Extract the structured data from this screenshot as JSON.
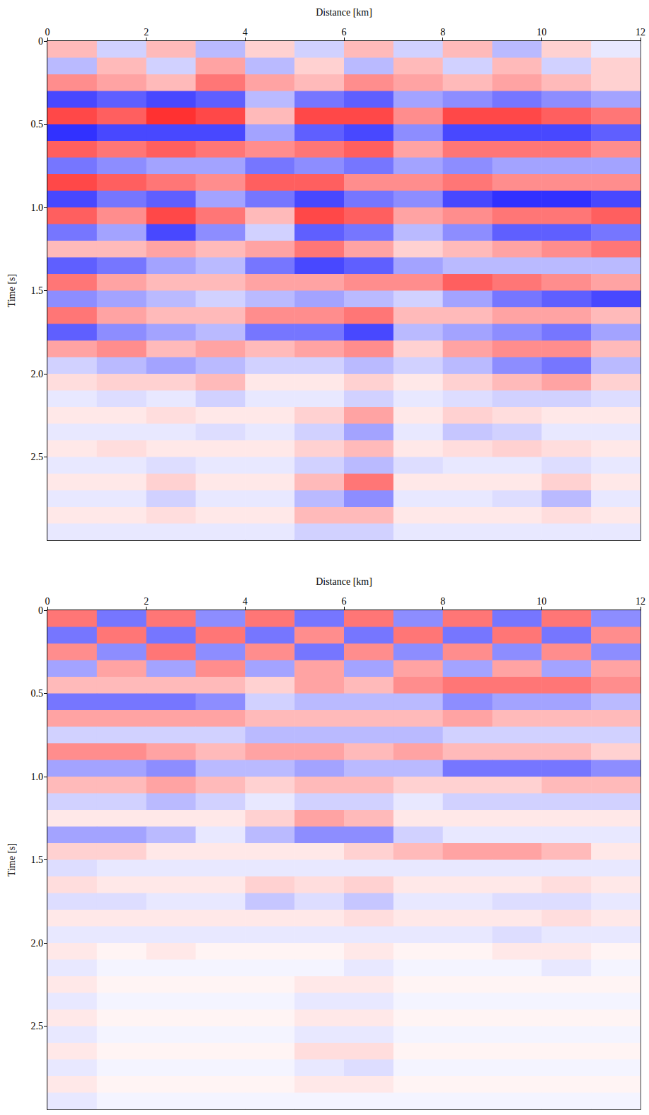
{
  "chart_data": [
    {
      "type": "heatmap",
      "xlabel": "Distance [km]",
      "ylabel": "Time [s]",
      "x": [
        0.5,
        1.5,
        2.5,
        3.5,
        4.5,
        5.5,
        6.5,
        7.5,
        8.5,
        9.5,
        10.5,
        11.5
      ],
      "y": [
        0.05,
        0.15,
        0.25,
        0.35,
        0.45,
        0.55,
        0.65,
        0.75,
        0.85,
        0.95,
        1.05,
        1.15,
        1.25,
        1.35,
        1.45,
        1.55,
        1.65,
        1.75,
        1.85,
        1.95,
        2.05,
        2.15,
        2.25,
        2.35,
        2.45,
        2.55,
        2.65,
        2.75,
        2.85,
        2.95
      ],
      "values": [
        [
          0.3,
          -0.2,
          0.3,
          -0.3,
          0.2,
          -0.2,
          0.3,
          -0.2,
          0.3,
          -0.3,
          0.2,
          -0.1
        ],
        [
          -0.3,
          0.3,
          -0.2,
          0.4,
          -0.3,
          0.2,
          -0.3,
          0.3,
          -0.2,
          0.3,
          -0.2,
          0.2
        ],
        [
          0.5,
          0.4,
          0.3,
          0.6,
          0.4,
          0.3,
          0.5,
          0.4,
          0.3,
          0.4,
          0.3,
          0.2
        ],
        [
          -0.8,
          -0.7,
          -0.8,
          -0.7,
          -0.3,
          -0.6,
          -0.7,
          -0.4,
          -0.5,
          -0.6,
          -0.5,
          -0.4
        ],
        [
          0.8,
          0.7,
          0.9,
          0.8,
          0.3,
          0.8,
          0.8,
          0.5,
          0.8,
          0.8,
          0.7,
          0.6
        ],
        [
          -0.9,
          -0.8,
          -0.8,
          -0.8,
          -0.4,
          -0.7,
          -0.8,
          -0.5,
          -0.8,
          -0.8,
          -0.8,
          -0.7
        ],
        [
          0.7,
          0.6,
          0.7,
          0.6,
          0.5,
          0.6,
          0.7,
          0.4,
          0.6,
          0.6,
          0.6,
          0.5
        ],
        [
          -0.6,
          -0.5,
          -0.4,
          -0.4,
          -0.6,
          -0.5,
          -0.6,
          -0.4,
          -0.5,
          -0.4,
          -0.4,
          -0.4
        ],
        [
          0.8,
          0.7,
          0.6,
          0.5,
          0.7,
          0.7,
          0.5,
          0.5,
          0.6,
          0.5,
          0.5,
          0.5
        ],
        [
          -0.8,
          -0.6,
          -0.7,
          -0.4,
          -0.6,
          -0.8,
          -0.6,
          -0.5,
          -0.8,
          -0.9,
          -0.9,
          -0.8
        ],
        [
          0.7,
          0.5,
          0.8,
          0.6,
          0.3,
          0.8,
          0.7,
          0.4,
          0.5,
          0.6,
          0.6,
          0.7
        ],
        [
          -0.6,
          -0.4,
          -0.8,
          -0.5,
          -0.2,
          -0.7,
          -0.6,
          -0.3,
          -0.5,
          -0.7,
          -0.7,
          -0.6
        ],
        [
          0.3,
          0.3,
          0.4,
          0.3,
          0.4,
          0.6,
          0.4,
          0.2,
          0.3,
          0.4,
          0.5,
          0.6
        ],
        [
          -0.7,
          -0.6,
          -0.4,
          -0.3,
          -0.6,
          -0.8,
          -0.7,
          -0.4,
          -0.3,
          -0.3,
          -0.3,
          -0.3
        ],
        [
          0.6,
          0.4,
          0.3,
          0.3,
          0.4,
          0.4,
          0.5,
          0.5,
          0.7,
          0.6,
          0.5,
          0.4
        ],
        [
          -0.5,
          -0.4,
          -0.3,
          -0.2,
          -0.3,
          -0.4,
          -0.3,
          -0.2,
          -0.4,
          -0.6,
          -0.7,
          -0.8
        ],
        [
          0.6,
          0.4,
          0.3,
          0.3,
          0.5,
          0.5,
          0.6,
          0.3,
          0.3,
          0.4,
          0.4,
          0.3
        ],
        [
          -0.7,
          -0.5,
          -0.4,
          -0.3,
          -0.6,
          -0.6,
          -0.8,
          -0.3,
          -0.4,
          -0.5,
          -0.6,
          -0.4
        ],
        [
          0.4,
          0.5,
          0.3,
          0.4,
          0.3,
          0.4,
          0.5,
          0.2,
          0.4,
          0.5,
          0.5,
          0.3
        ],
        [
          -0.2,
          -0.3,
          -0.4,
          -0.3,
          -0.2,
          -0.2,
          -0.3,
          -0.2,
          -0.3,
          -0.5,
          -0.6,
          -0.3
        ],
        [
          0.15,
          0.2,
          0.2,
          0.3,
          0.1,
          0.1,
          0.2,
          0.1,
          0.2,
          0.3,
          0.4,
          0.2
        ],
        [
          -0.1,
          -0.15,
          -0.1,
          -0.2,
          -0.1,
          -0.1,
          -0.2,
          -0.1,
          -0.15,
          -0.2,
          -0.2,
          -0.15
        ],
        [
          0.1,
          0.1,
          0.15,
          0.1,
          0.1,
          0.2,
          0.4,
          0.1,
          0.2,
          0.15,
          0.1,
          0.1
        ],
        [
          -0.1,
          -0.1,
          -0.1,
          -0.15,
          -0.1,
          -0.2,
          -0.4,
          -0.1,
          -0.25,
          -0.2,
          -0.1,
          -0.1
        ],
        [
          0.1,
          0.15,
          0.1,
          0.1,
          0.1,
          0.2,
          0.3,
          0.1,
          0.15,
          0.2,
          0.15,
          0.1
        ],
        [
          -0.1,
          -0.1,
          -0.15,
          -0.1,
          -0.1,
          -0.2,
          -0.3,
          -0.15,
          -0.1,
          -0.1,
          -0.15,
          -0.1
        ],
        [
          0.1,
          0.1,
          0.2,
          0.1,
          0.1,
          0.3,
          0.6,
          0.1,
          0.1,
          0.1,
          0.2,
          0.1
        ],
        [
          -0.1,
          -0.1,
          -0.2,
          -0.1,
          -0.1,
          -0.3,
          -0.5,
          -0.1,
          -0.1,
          -0.15,
          -0.3,
          -0.1
        ],
        [
          0.1,
          0.1,
          0.15,
          0.1,
          0.1,
          0.3,
          0.3,
          0.1,
          0.1,
          0.1,
          0.15,
          0.1
        ],
        [
          -0.1,
          -0.1,
          -0.1,
          -0.1,
          -0.1,
          -0.2,
          -0.2,
          -0.1,
          -0.1,
          -0.1,
          -0.1,
          -0.1
        ]
      ],
      "xlim": [
        0,
        12
      ],
      "xticks": [
        0,
        2,
        4,
        6,
        8,
        10,
        12
      ],
      "ylim": [
        0,
        3
      ],
      "yticks": [
        0,
        0.5,
        {
          "value": 1,
          "label": "1.0"
        },
        1.5,
        {
          "value": 2,
          "label": "2.0"
        },
        2.5
      ],
      "color_range": [
        -1,
        1
      ],
      "colors": [
        "#1a1aff",
        "#ffffff",
        "#ff1a1a"
      ]
    },
    {
      "type": "heatmap",
      "xlabel": "Distance [km]",
      "ylabel": "Time [s]",
      "x": [
        0.5,
        1.5,
        2.5,
        3.5,
        4.5,
        5.5,
        6.5,
        7.5,
        8.5,
        9.5,
        10.5,
        11.5
      ],
      "y": [
        0.05,
        0.15,
        0.25,
        0.35,
        0.45,
        0.55,
        0.65,
        0.75,
        0.85,
        0.95,
        1.05,
        1.15,
        1.25,
        1.35,
        1.45,
        1.55,
        1.65,
        1.75,
        1.85,
        1.95,
        2.05,
        2.15,
        2.25,
        2.35,
        2.45,
        2.55,
        2.65,
        2.75,
        2.85,
        2.95
      ],
      "values": [
        [
          0.6,
          -0.6,
          0.6,
          -0.5,
          0.6,
          -0.6,
          0.6,
          -0.5,
          0.6,
          -0.6,
          0.6,
          -0.5
        ],
        [
          -0.6,
          0.6,
          -0.6,
          0.6,
          -0.6,
          0.5,
          -0.6,
          0.6,
          -0.6,
          0.6,
          -0.6,
          0.5
        ],
        [
          0.5,
          -0.5,
          0.6,
          -0.5,
          0.5,
          -0.6,
          0.5,
          -0.5,
          0.5,
          -0.5,
          0.5,
          -0.5
        ],
        [
          -0.4,
          0.4,
          -0.4,
          0.5,
          -0.4,
          0.4,
          -0.4,
          0.4,
          -0.4,
          0.4,
          -0.4,
          0.4
        ],
        [
          0.3,
          0.3,
          0.3,
          0.3,
          0.2,
          0.4,
          0.3,
          0.5,
          0.6,
          0.6,
          0.6,
          0.5
        ],
        [
          -0.6,
          -0.6,
          -0.6,
          -0.5,
          -0.2,
          -0.3,
          -0.3,
          -0.3,
          -0.5,
          -0.4,
          -0.4,
          -0.3
        ],
        [
          0.4,
          0.4,
          0.4,
          0.4,
          0.3,
          0.3,
          0.3,
          0.3,
          0.4,
          0.3,
          0.3,
          0.3
        ],
        [
          -0.2,
          -0.2,
          -0.2,
          -0.2,
          -0.3,
          -0.3,
          -0.3,
          -0.3,
          -0.2,
          -0.2,
          -0.2,
          -0.2
        ],
        [
          0.5,
          0.5,
          0.4,
          0.3,
          0.4,
          0.4,
          0.3,
          0.4,
          0.3,
          0.3,
          0.3,
          0.2
        ],
        [
          -0.4,
          -0.4,
          -0.5,
          -0.3,
          -0.3,
          -0.4,
          -0.3,
          -0.3,
          -0.6,
          -0.6,
          -0.6,
          -0.5
        ],
        [
          0.3,
          0.3,
          0.4,
          0.3,
          0.2,
          0.3,
          0.3,
          0.2,
          0.2,
          0.2,
          0.3,
          0.3
        ],
        [
          -0.2,
          -0.2,
          -0.3,
          -0.2,
          -0.1,
          -0.2,
          -0.2,
          -0.1,
          -0.2,
          -0.2,
          -0.2,
          -0.2
        ],
        [
          0.1,
          0.1,
          0.1,
          0.1,
          0.2,
          0.4,
          0.3,
          0.1,
          0.1,
          0.1,
          0.1,
          0.1
        ],
        [
          -0.4,
          -0.4,
          -0.3,
          -0.1,
          -0.3,
          -0.5,
          -0.5,
          -0.2,
          -0.1,
          -0.1,
          -0.1,
          -0.1
        ],
        [
          0.2,
          0.2,
          0.1,
          0.1,
          0.1,
          0.1,
          0.2,
          0.3,
          0.4,
          0.4,
          0.3,
          0.1
        ],
        [
          -0.15,
          -0.1,
          -0.1,
          -0.1,
          -0.1,
          -0.1,
          -0.1,
          -0.1,
          -0.1,
          -0.1,
          -0.1,
          -0.1
        ],
        [
          0.15,
          0.1,
          0.1,
          0.1,
          0.2,
          0.15,
          0.2,
          0.1,
          0.1,
          0.1,
          0.15,
          0.1
        ],
        [
          -0.15,
          -0.15,
          -0.1,
          -0.1,
          -0.25,
          -0.15,
          -0.25,
          -0.1,
          -0.1,
          -0.15,
          -0.15,
          -0.1
        ],
        [
          0.1,
          0.1,
          0.1,
          0.1,
          0.1,
          0.1,
          0.15,
          0.1,
          0.1,
          0.1,
          0.15,
          0.1
        ],
        [
          -0.1,
          -0.1,
          -0.1,
          -0.1,
          -0.1,
          -0.1,
          -0.1,
          -0.1,
          -0.1,
          -0.15,
          -0.1,
          -0.1
        ],
        [
          0.1,
          0.05,
          0.1,
          0.05,
          0.05,
          0.05,
          0.1,
          0.05,
          0.05,
          0.1,
          0.1,
          0.05
        ],
        [
          -0.1,
          -0.05,
          -0.05,
          -0.05,
          -0.05,
          -0.05,
          -0.1,
          -0.05,
          -0.05,
          -0.05,
          -0.1,
          -0.05
        ],
        [
          0.1,
          0.05,
          0.05,
          0.05,
          0.05,
          0.1,
          0.1,
          0.05,
          0.05,
          0.05,
          0.05,
          0.05
        ],
        [
          -0.1,
          -0.05,
          -0.05,
          -0.05,
          -0.05,
          -0.1,
          -0.1,
          -0.05,
          -0.05,
          -0.05,
          -0.05,
          -0.05
        ],
        [
          0.1,
          0.05,
          0.05,
          0.05,
          0.05,
          0.1,
          0.1,
          0.05,
          0.05,
          0.05,
          0.05,
          0.05
        ],
        [
          -0.1,
          -0.05,
          -0.05,
          -0.05,
          -0.05,
          -0.1,
          -0.1,
          -0.05,
          -0.05,
          -0.05,
          -0.05,
          -0.05
        ],
        [
          0.1,
          0.05,
          0.05,
          0.05,
          0.05,
          0.15,
          0.15,
          0.05,
          0.05,
          0.05,
          0.05,
          0.05
        ],
        [
          -0.1,
          -0.05,
          -0.05,
          -0.05,
          -0.05,
          -0.1,
          -0.15,
          -0.05,
          -0.05,
          -0.05,
          -0.05,
          -0.05
        ],
        [
          0.1,
          0.05,
          0.05,
          0.05,
          0.05,
          0.1,
          0.1,
          0.05,
          0.05,
          0.05,
          0.05,
          0.05
        ],
        [
          -0.1,
          -0.05,
          -0.05,
          -0.05,
          -0.05,
          -0.05,
          -0.05,
          -0.05,
          -0.05,
          -0.05,
          -0.05,
          -0.05
        ]
      ],
      "xlim": [
        0,
        12
      ],
      "xticks": [
        0,
        2,
        4,
        6,
        8,
        10,
        12
      ],
      "ylim": [
        0,
        3
      ],
      "yticks": [
        0,
        0.5,
        {
          "value": 1,
          "label": "1.0"
        },
        1.5,
        {
          "value": 2,
          "label": "2.0"
        },
        2.5
      ],
      "color_range": [
        -1,
        1
      ],
      "colors": [
        "#1a1aff",
        "#ffffff",
        "#ff1a1a"
      ]
    }
  ]
}
